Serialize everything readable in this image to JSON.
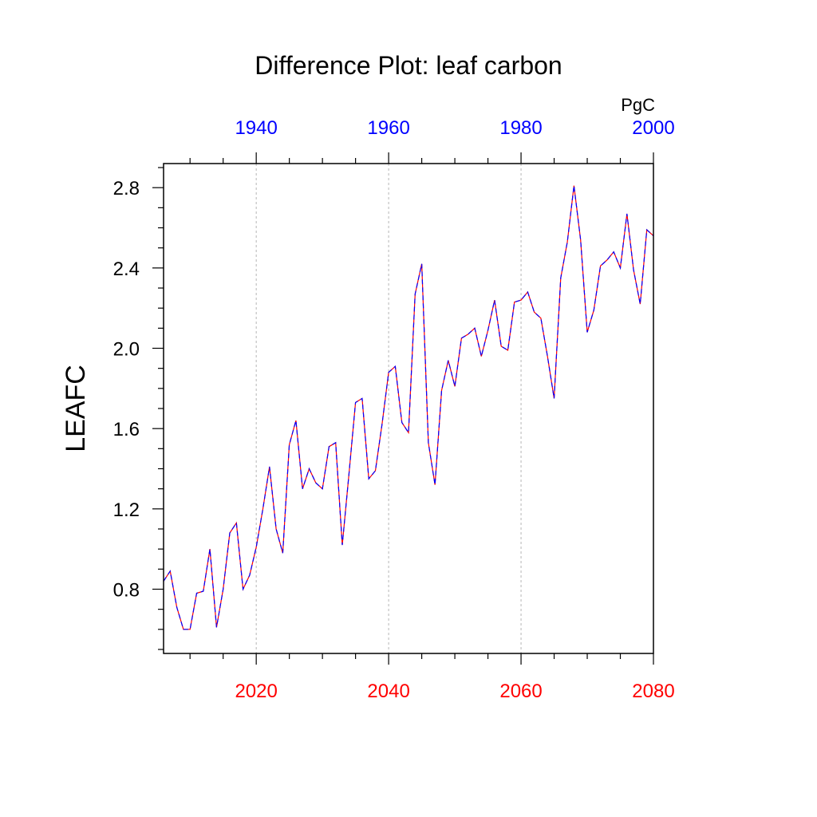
{
  "chart_data": {
    "type": "line",
    "title": "Difference Plot: leaf carbon",
    "units": "PgC",
    "ylabel": "LEAFC",
    "xlabel": "",
    "xlim": [
      2006,
      2080
    ],
    "ylim": [
      0.48,
      2.92
    ],
    "bottom_axis": {
      "ticks": [
        2020,
        2040,
        2060,
        2080
      ],
      "color": "#ff0000"
    },
    "top_axis": {
      "ticks": [
        1940,
        1960,
        1980,
        2000
      ],
      "offset_years": 80,
      "color": "#0000ff"
    },
    "y_ticks": [
      0.8,
      1.2,
      1.6,
      2.0,
      2.4,
      2.8
    ],
    "grid": "vertical dotted at major x ticks",
    "series": [
      {
        "line_colors": [
          "#ff0000",
          "#0000ff"
        ],
        "x": [
          2006,
          2007,
          2008,
          2009,
          2010,
          2011,
          2012,
          2013,
          2014,
          2015,
          2016,
          2017,
          2018,
          2019,
          2020,
          2021,
          2022,
          2023,
          2024,
          2025,
          2026,
          2027,
          2028,
          2029,
          2030,
          2031,
          2032,
          2033,
          2034,
          2035,
          2036,
          2037,
          2038,
          2039,
          2040,
          2041,
          2042,
          2043,
          2044,
          2045,
          2046,
          2047,
          2048,
          2049,
          2050,
          2051,
          2052,
          2053,
          2054,
          2055,
          2056,
          2057,
          2058,
          2059,
          2060,
          2061,
          2062,
          2063,
          2064,
          2065,
          2066,
          2067,
          2068,
          2069,
          2070,
          2071,
          2072,
          2073,
          2074,
          2075,
          2076,
          2077,
          2078,
          2079,
          2080
        ],
        "values": [
          0.84,
          0.89,
          0.71,
          0.6,
          0.6,
          0.78,
          0.79,
          1.0,
          0.61,
          0.8,
          1.08,
          1.13,
          0.8,
          0.87,
          1.01,
          1.2,
          1.41,
          1.1,
          0.98,
          1.52,
          1.64,
          1.3,
          1.4,
          1.33,
          1.3,
          1.51,
          1.53,
          1.02,
          1.37,
          1.73,
          1.75,
          1.35,
          1.39,
          1.62,
          1.88,
          1.91,
          1.63,
          1.58,
          2.27,
          2.42,
          1.53,
          1.32,
          1.79,
          1.94,
          1.81,
          2.05,
          2.07,
          2.1,
          1.96,
          2.09,
          2.24,
          2.01,
          1.99,
          2.23,
          2.24,
          2.28,
          2.18,
          2.15,
          1.96,
          1.75,
          2.35,
          2.53,
          2.81,
          2.54,
          2.08,
          2.19,
          2.41,
          2.44,
          2.48,
          2.4,
          2.67,
          2.39,
          2.22,
          2.59,
          2.56
        ]
      }
    ]
  }
}
